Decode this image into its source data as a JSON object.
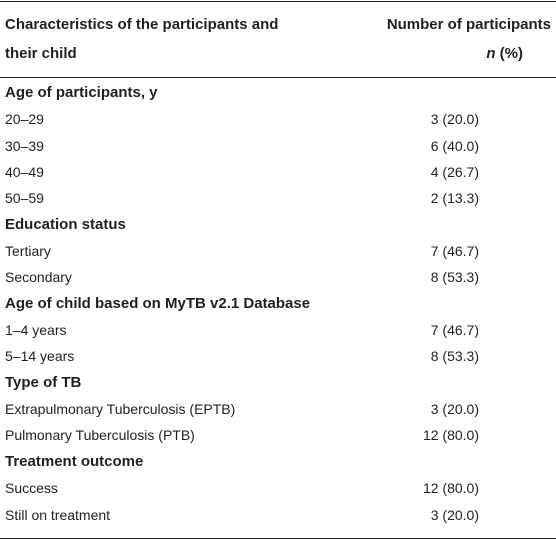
{
  "header": {
    "left_line1": "Characteristics of the participants and",
    "left_line2": "their child",
    "right_line1": "Number of participants",
    "right_n": "n",
    "right_pct": "(%)"
  },
  "sections": [
    {
      "title": "Age of participants, y",
      "rows": [
        {
          "label": "20–29",
          "value": "3 (20.0)"
        },
        {
          "label": "30–39",
          "value": "6 (40.0)"
        },
        {
          "label": "40–49",
          "value": "4 (26.7)"
        },
        {
          "label": "50–59",
          "value": "2 (13.3)"
        }
      ]
    },
    {
      "title": "Education status",
      "rows": [
        {
          "label": "Tertiary",
          "value": "7 (46.7)"
        },
        {
          "label": "Secondary",
          "value": "8 (53.3)"
        }
      ]
    },
    {
      "title": "Age of child based on MyTB v2.1 Database",
      "rows": [
        {
          "label": "1–4 years",
          "value": "7 (46.7)"
        },
        {
          "label": "5–14 years",
          "value": "8 (53.3)"
        }
      ]
    },
    {
      "title": "Type of TB",
      "rows": [
        {
          "label": "Extrapulmonary Tuberculosis (EPTB)",
          "value": "3 (20.0)"
        },
        {
          "label": "Pulmonary Tuberculosis (PTB)",
          "value": "12 (80.0)"
        }
      ]
    },
    {
      "title": "Treatment outcome",
      "rows": [
        {
          "label": "Success",
          "value": "12 (80.0)"
        },
        {
          "label": "Still on treatment",
          "value": "3 (20.0)"
        }
      ]
    }
  ]
}
